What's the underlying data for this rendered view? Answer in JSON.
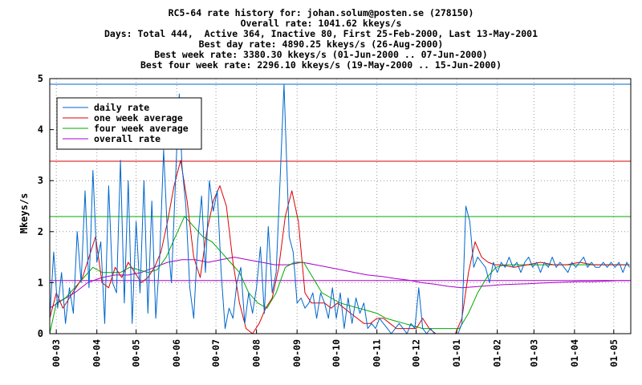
{
  "header": {
    "line1": "RC5-64 rate history for: johan.solum@posten.se (278150)",
    "line2": "Overall rate: 1041.62 kkeys/s",
    "line3": "Days: Total 444,  Active 364, Inactive 80, First 25-Feb-2000, Last 13-May-2001",
    "line4": "Best day rate: 4890.25 kkeys/s (26-Aug-2000)",
    "line5": "Best week rate: 3380.30 kkeys/s (01-Jun-2000 .. 07-Jun-2000)",
    "line6": "Best four week rate: 2296.10 kkeys/s (19-May-2000 .. 15-Jun-2000)"
  },
  "colors": {
    "daily": "#0066cc",
    "week": "#dd0000",
    "four_week": "#00aa00",
    "overall": "#aa00cc"
  },
  "chart_data": {
    "type": "line",
    "title": "",
    "xlabel": "",
    "ylabel": "Mkeys/s",
    "ylim": [
      0,
      5
    ],
    "xlim": [
      "2000-02-25",
      "2001-05-13"
    ],
    "yticks": [
      "0",
      "1",
      "2",
      "3",
      "4",
      "5"
    ],
    "xticks": [
      {
        "date": "2000-03-01",
        "label": "00-03"
      },
      {
        "date": "2000-04-01",
        "label": "00-04"
      },
      {
        "date": "2000-05-01",
        "label": "00-05"
      },
      {
        "date": "2000-06-01",
        "label": "00-06"
      },
      {
        "date": "2000-07-01",
        "label": "00-07"
      },
      {
        "date": "2000-08-01",
        "label": "00-08"
      },
      {
        "date": "2000-09-01",
        "label": "00-09"
      },
      {
        "date": "2000-10-01",
        "label": "00-10"
      },
      {
        "date": "2000-11-01",
        "label": "00-11"
      },
      {
        "date": "2000-12-01",
        "label": "00-12"
      },
      {
        "date": "2001-01-01",
        "label": "01-01"
      },
      {
        "date": "2001-02-01",
        "label": "01-02"
      },
      {
        "date": "2001-03-01",
        "label": "01-03"
      },
      {
        "date": "2001-04-01",
        "label": "01-04"
      },
      {
        "date": "2001-05-01",
        "label": "01-05"
      }
    ],
    "grid": true,
    "legend_position": "top-left",
    "hlines": [
      {
        "series": "daily",
        "y": 4.89025
      },
      {
        "series": "week",
        "y": 3.3803
      },
      {
        "series": "four_week",
        "y": 2.2961
      },
      {
        "series": "overall",
        "y": 1.04162
      }
    ],
    "series": [
      {
        "key": "daily",
        "name": "daily rate",
        "x": [
          "2000-02-25",
          "2000-02-28",
          "2000-03-02",
          "2000-03-05",
          "2000-03-08",
          "2000-03-11",
          "2000-03-14",
          "2000-03-17",
          "2000-03-20",
          "2000-03-23",
          "2000-03-26",
          "2000-03-29",
          "2000-04-01",
          "2000-04-04",
          "2000-04-07",
          "2000-04-10",
          "2000-04-13",
          "2000-04-16",
          "2000-04-19",
          "2000-04-22",
          "2000-04-25",
          "2000-04-28",
          "2000-05-01",
          "2000-05-04",
          "2000-05-07",
          "2000-05-10",
          "2000-05-13",
          "2000-05-16",
          "2000-05-19",
          "2000-05-22",
          "2000-05-25",
          "2000-05-28",
          "2000-06-01",
          "2000-06-03",
          "2000-06-05",
          "2000-06-08",
          "2000-06-11",
          "2000-06-14",
          "2000-06-17",
          "2000-06-20",
          "2000-06-23",
          "2000-06-26",
          "2000-06-29",
          "2000-07-02",
          "2000-07-05",
          "2000-07-08",
          "2000-07-11",
          "2000-07-14",
          "2000-07-17",
          "2000-07-20",
          "2000-07-23",
          "2000-07-26",
          "2000-07-29",
          "2000-08-01",
          "2000-08-04",
          "2000-08-07",
          "2000-08-10",
          "2000-08-13",
          "2000-08-16",
          "2000-08-19",
          "2000-08-22",
          "2000-08-26",
          "2000-08-29",
          "2000-09-01",
          "2000-09-04",
          "2000-09-07",
          "2000-09-10",
          "2000-09-13",
          "2000-09-16",
          "2000-09-19",
          "2000-09-22",
          "2000-09-25",
          "2000-09-28",
          "2000-10-01",
          "2000-10-04",
          "2000-10-07",
          "2000-10-10",
          "2000-10-13",
          "2000-10-16",
          "2000-10-19",
          "2000-10-22",
          "2000-10-25",
          "2000-10-28",
          "2000-10-31",
          "2000-11-03",
          "2000-11-06",
          "2000-11-09",
          "2000-11-12",
          "2000-11-15",
          "2000-11-18",
          "2000-11-21",
          "2000-11-24",
          "2000-11-27",
          "2000-11-30",
          "2000-12-03",
          "2000-12-06",
          "2000-12-09",
          "2000-12-12",
          "2000-12-15",
          "2000-12-18",
          "2000-12-21",
          "2000-12-24",
          "2000-12-27",
          "2000-12-30",
          "2001-01-02",
          "2001-01-05",
          "2001-01-08",
          "2001-01-11",
          "2001-01-14",
          "2001-01-17",
          "2001-01-20",
          "2001-01-23",
          "2001-01-26",
          "2001-01-29",
          "2001-02-01",
          "2001-02-04",
          "2001-02-07",
          "2001-02-10",
          "2001-02-13",
          "2001-02-16",
          "2001-02-19",
          "2001-02-22",
          "2001-02-25",
          "2001-02-28",
          "2001-03-03",
          "2001-03-06",
          "2001-03-09",
          "2001-03-12",
          "2001-03-15",
          "2001-03-18",
          "2001-03-21",
          "2001-03-24",
          "2001-03-27",
          "2001-03-30",
          "2001-04-02",
          "2001-04-05",
          "2001-04-08",
          "2001-04-11",
          "2001-04-14",
          "2001-04-17",
          "2001-04-20",
          "2001-04-23",
          "2001-04-26",
          "2001-04-29",
          "2001-05-02",
          "2001-05-05",
          "2001-05-08",
          "2001-05-11",
          "2001-05-13"
        ],
        "y": [
          0.3,
          1.6,
          0.5,
          1.2,
          0.2,
          0.9,
          0.4,
          2.0,
          1.0,
          2.8,
          0.9,
          3.2,
          1.4,
          1.8,
          0.2,
          2.9,
          1.0,
          0.8,
          3.4,
          0.6,
          3.0,
          0.2,
          2.2,
          0.8,
          3.0,
          0.4,
          2.6,
          0.3,
          1.5,
          3.6,
          1.9,
          1.0,
          3.6,
          4.7,
          3.3,
          2.5,
          0.9,
          0.3,
          1.8,
          2.7,
          1.2,
          3.0,
          2.4,
          2.8,
          1.2,
          0.1,
          0.5,
          0.3,
          1.0,
          1.3,
          0.2,
          0.8,
          0.4,
          0.9,
          1.7,
          0.4,
          2.1,
          0.8,
          1.2,
          3.0,
          4.89,
          1.9,
          1.6,
          0.6,
          0.7,
          0.5,
          0.6,
          0.8,
          0.3,
          0.8,
          0.6,
          0.3,
          0.9,
          0.3,
          0.8,
          0.1,
          0.7,
          0.2,
          0.7,
          0.4,
          0.6,
          0.1,
          0.2,
          0.1,
          0.3,
          0.2,
          0.1,
          0.0,
          0.1,
          0.2,
          0.1,
          0.0,
          0.2,
          0.1,
          0.9,
          0.1,
          0.0,
          0.1,
          0.0,
          0.0,
          0.0,
          0.0,
          0.0,
          0.0,
          0.0,
          0.2,
          2.5,
          2.2,
          1.3,
          1.5,
          1.4,
          1.3,
          1.0,
          1.4,
          1.2,
          1.4,
          1.3,
          1.5,
          1.3,
          1.4,
          1.2,
          1.4,
          1.5,
          1.3,
          1.4,
          1.2,
          1.4,
          1.3,
          1.5,
          1.3,
          1.4,
          1.3,
          1.2,
          1.4,
          1.3,
          1.4,
          1.5,
          1.3,
          1.4,
          1.3,
          1.3,
          1.4,
          1.3,
          1.4,
          1.3,
          1.4,
          1.2,
          1.4,
          1.3
        ]
      },
      {
        "key": "week",
        "name": "one week average",
        "x": [
          "2000-02-25",
          "2000-03-01",
          "2000-03-06",
          "2000-03-11",
          "2000-03-16",
          "2000-03-21",
          "2000-03-26",
          "2000-03-31",
          "2000-04-05",
          "2000-04-10",
          "2000-04-15",
          "2000-04-20",
          "2000-04-25",
          "2000-04-30",
          "2000-05-05",
          "2000-05-10",
          "2000-05-15",
          "2000-05-20",
          "2000-05-25",
          "2000-05-30",
          "2000-06-04",
          "2000-06-09",
          "2000-06-14",
          "2000-06-19",
          "2000-06-24",
          "2000-06-29",
          "2000-07-04",
          "2000-07-09",
          "2000-07-14",
          "2000-07-19",
          "2000-07-24",
          "2000-07-29",
          "2000-08-03",
          "2000-08-08",
          "2000-08-13",
          "2000-08-18",
          "2000-08-23",
          "2000-08-28",
          "2000-09-02",
          "2000-09-07",
          "2000-09-12",
          "2000-09-17",
          "2000-09-22",
          "2000-09-27",
          "2000-10-02",
          "2000-10-07",
          "2000-10-12",
          "2000-10-17",
          "2000-10-22",
          "2000-10-27",
          "2000-11-01",
          "2000-11-06",
          "2000-11-11",
          "2000-11-16",
          "2000-11-21",
          "2000-11-26",
          "2000-12-01",
          "2000-12-06",
          "2000-12-11",
          "2000-12-16",
          "2000-12-21",
          "2000-12-26",
          "2000-12-31",
          "2001-01-05",
          "2001-01-10",
          "2001-01-15",
          "2001-01-20",
          "2001-01-25",
          "2001-01-30",
          "2001-02-04",
          "2001-02-14",
          "2001-02-24",
          "2001-03-06",
          "2001-03-16",
          "2001-03-26",
          "2001-04-05",
          "2001-04-15",
          "2001-04-25",
          "2001-05-05",
          "2001-05-13"
        ],
        "y": [
          0.3,
          0.8,
          0.5,
          0.7,
          0.9,
          1.1,
          1.5,
          1.9,
          1.0,
          0.9,
          1.3,
          1.1,
          1.4,
          1.2,
          1.0,
          1.1,
          1.3,
          1.6,
          2.2,
          2.9,
          3.4,
          2.6,
          1.5,
          1.1,
          2.0,
          2.6,
          2.9,
          2.5,
          1.4,
          0.6,
          0.1,
          0.0,
          0.2,
          0.5,
          0.7,
          1.3,
          2.3,
          2.8,
          2.2,
          0.8,
          0.6,
          0.6,
          0.6,
          0.5,
          0.6,
          0.5,
          0.4,
          0.3,
          0.2,
          0.2,
          0.3,
          0.3,
          0.2,
          0.1,
          0.1,
          0.1,
          0.1,
          0.3,
          0.1,
          0.0,
          0.0,
          0.0,
          0.0,
          0.3,
          1.2,
          1.8,
          1.5,
          1.4,
          1.35,
          1.35,
          1.3,
          1.35,
          1.4,
          1.35,
          1.35,
          1.4,
          1.35,
          1.35,
          1.35,
          1.35
        ]
      },
      {
        "key": "four_week",
        "name": "four week average",
        "x": [
          "2000-02-25",
          "2000-03-01",
          "2000-03-08",
          "2000-03-15",
          "2000-03-22",
          "2000-03-29",
          "2000-04-05",
          "2000-04-12",
          "2000-04-19",
          "2000-04-26",
          "2000-05-03",
          "2000-05-10",
          "2000-05-17",
          "2000-05-24",
          "2000-05-31",
          "2000-06-07",
          "2000-06-14",
          "2000-06-21",
          "2000-06-28",
          "2000-07-05",
          "2000-07-12",
          "2000-07-19",
          "2000-07-26",
          "2000-08-02",
          "2000-08-09",
          "2000-08-16",
          "2000-08-23",
          "2000-08-30",
          "2000-09-06",
          "2000-09-13",
          "2000-09-20",
          "2000-09-27",
          "2000-10-04",
          "2000-10-11",
          "2000-10-18",
          "2000-10-25",
          "2000-11-01",
          "2000-11-08",
          "2000-11-15",
          "2000-11-22",
          "2000-11-29",
          "2000-12-06",
          "2000-12-13",
          "2000-12-20",
          "2000-12-27",
          "2001-01-03",
          "2001-01-10",
          "2001-01-17",
          "2001-01-24",
          "2001-01-31",
          "2001-02-07",
          "2001-02-21",
          "2001-03-07",
          "2001-03-21",
          "2001-04-04",
          "2001-04-18",
          "2001-05-02",
          "2001-05-13"
        ],
        "y": [
          0.0,
          0.6,
          0.7,
          0.9,
          1.1,
          1.3,
          1.2,
          1.2,
          1.2,
          1.3,
          1.25,
          1.2,
          1.25,
          1.5,
          1.9,
          2.3,
          2.1,
          1.9,
          1.8,
          1.6,
          1.4,
          1.2,
          0.8,
          0.6,
          0.5,
          0.8,
          1.3,
          1.4,
          1.4,
          1.1,
          0.8,
          0.7,
          0.6,
          0.55,
          0.5,
          0.45,
          0.4,
          0.3,
          0.25,
          0.2,
          0.15,
          0.1,
          0.1,
          0.1,
          0.1,
          0.1,
          0.4,
          0.8,
          1.1,
          1.3,
          1.35,
          1.35,
          1.35,
          1.35,
          1.35,
          1.35,
          1.35,
          1.35
        ]
      },
      {
        "key": "overall",
        "name": "overall rate",
        "x": [
          "2000-02-25",
          "2000-03-05",
          "2000-03-15",
          "2000-03-25",
          "2000-04-05",
          "2000-04-15",
          "2000-04-25",
          "2000-05-05",
          "2000-05-15",
          "2000-05-25",
          "2000-06-05",
          "2000-06-15",
          "2000-06-25",
          "2000-07-05",
          "2000-07-15",
          "2000-07-25",
          "2000-08-05",
          "2000-08-15",
          "2000-08-25",
          "2000-09-05",
          "2000-09-15",
          "2000-09-25",
          "2000-10-05",
          "2000-10-15",
          "2000-10-25",
          "2000-11-05",
          "2000-11-15",
          "2000-11-25",
          "2000-12-05",
          "2000-12-15",
          "2000-12-25",
          "2001-01-05",
          "2001-01-15",
          "2001-01-25",
          "2001-02-05",
          "2001-02-15",
          "2001-02-25",
          "2001-03-05",
          "2001-03-15",
          "2001-03-25",
          "2001-04-05",
          "2001-04-15",
          "2001-04-25",
          "2001-05-05",
          "2001-05-13"
        ],
        "y": [
          0.5,
          0.65,
          0.8,
          1.0,
          1.1,
          1.15,
          1.15,
          1.2,
          1.3,
          1.4,
          1.45,
          1.45,
          1.4,
          1.45,
          1.5,
          1.45,
          1.4,
          1.35,
          1.35,
          1.4,
          1.35,
          1.3,
          1.25,
          1.2,
          1.15,
          1.12,
          1.08,
          1.05,
          1.0,
          0.97,
          0.93,
          0.9,
          0.92,
          0.94,
          0.96,
          0.97,
          0.98,
          0.99,
          1.0,
          1.01,
          1.02,
          1.02,
          1.03,
          1.04,
          1.04
        ]
      }
    ]
  }
}
